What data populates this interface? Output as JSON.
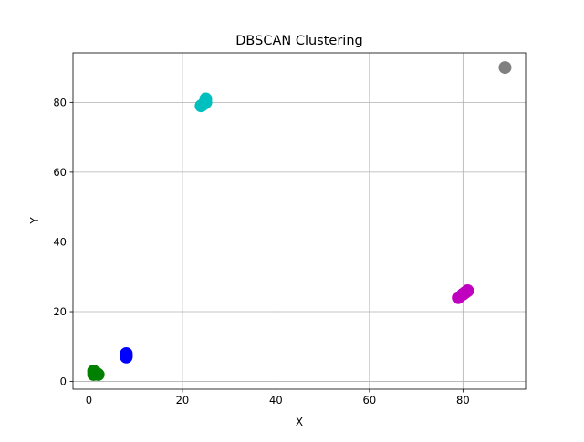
{
  "chart_data": {
    "type": "scatter",
    "title": "DBSCAN Clustering",
    "xlabel": "X",
    "ylabel": "Y",
    "xlim": [
      -3.4,
      93.4
    ],
    "ylim": [
      -2.2,
      94.2
    ],
    "xticks": [
      0,
      20,
      40,
      60,
      80
    ],
    "yticks": [
      0,
      20,
      40,
      60,
      80
    ],
    "grid": true,
    "series": [
      {
        "color": "#008000",
        "points": [
          [
            1,
            2
          ],
          [
            1.5,
            2.5
          ],
          [
            1,
            3
          ],
          [
            2,
            2
          ],
          [
            1.2,
            2.2
          ]
        ]
      },
      {
        "color": "#0000ff",
        "points": [
          [
            8,
            7
          ],
          [
            8,
            8
          ],
          [
            8,
            7.5
          ]
        ]
      },
      {
        "color": "#00bfbf",
        "points": [
          [
            24,
            79
          ],
          [
            25,
            80
          ],
          [
            25,
            81
          ],
          [
            24.5,
            79.5
          ]
        ]
      },
      {
        "color": "#bf00bf",
        "points": [
          [
            79,
            24
          ],
          [
            80,
            25
          ],
          [
            81,
            26
          ],
          [
            80.5,
            25.5
          ]
        ]
      },
      {
        "color": "#808080",
        "points": [
          [
            89,
            90
          ]
        ]
      }
    ]
  }
}
